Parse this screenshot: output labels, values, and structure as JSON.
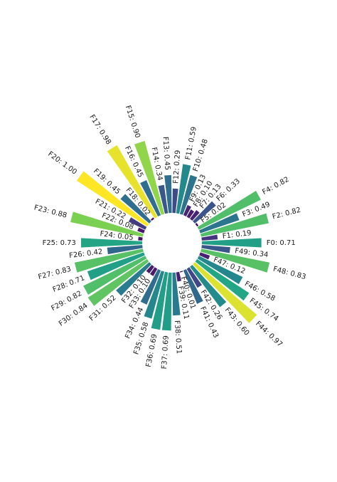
{
  "chart_data": {
    "type": "bar",
    "subtype": "radial",
    "title": "",
    "label_format": "{name}: {value}",
    "ylim": [
      0,
      1.0
    ],
    "grid": false,
    "legend": "none",
    "colormap": "viridis",
    "categories": [
      "F0",
      "F1",
      "F2",
      "F3",
      "F4",
      "F5",
      "F6",
      "F7",
      "F8",
      "F9",
      "F10",
      "F11",
      "F12",
      "F13",
      "F14",
      "F15",
      "F16",
      "F17",
      "F18",
      "F19",
      "F20",
      "F21",
      "F22",
      "F23",
      "F24",
      "F25",
      "F26",
      "F27",
      "F28",
      "F29",
      "F30",
      "F31",
      "F32",
      "F33",
      "F34",
      "F35",
      "F36",
      "F37",
      "F38",
      "F39",
      "F40",
      "F41",
      "F42",
      "F43",
      "F44",
      "F45",
      "F46",
      "F47",
      "F48",
      "F49"
    ],
    "values": [
      0.71,
      0.19,
      0.82,
      0.49,
      0.82,
      0.02,
      0.33,
      0.13,
      0.1,
      0.13,
      0.48,
      0.59,
      0.29,
      0.45,
      0.34,
      0.9,
      0.45,
      0.98,
      0.02,
      0.45,
      1.0,
      0.22,
      0.08,
      0.88,
      0.05,
      0.73,
      0.42,
      0.83,
      0.71,
      0.82,
      0.84,
      0.52,
      0.1,
      0.1,
      0.44,
      0.58,
      0.69,
      0.69,
      0.51,
      0.11,
      0.01,
      0.43,
      0.26,
      0.6,
      0.97,
      0.74,
      0.58,
      0.12,
      0.83,
      0.34
    ],
    "value_labels": [
      "0.71",
      "0.19",
      "0.82",
      "0.49",
      "0.82",
      "0.02",
      "0.33",
      "0.13",
      "0.10",
      "0.13",
      "0.48",
      "0.59",
      "0.29",
      "0.45",
      "0.34",
      "0.90",
      "0.45",
      "0.98",
      "0.02",
      "0.45",
      "1.00",
      "0.22",
      "0.08",
      "0.88",
      "0.05",
      "0.73",
      "0.42",
      "0.83",
      "0.71",
      "0.82",
      "0.84",
      "0.52",
      "0.10",
      "0.10",
      "0.44",
      "0.58",
      "0.69",
      "0.69",
      "0.51",
      "0.11",
      "0.01",
      "0.43",
      "0.26",
      "0.60",
      "0.97",
      "0.74",
      "0.58",
      "0.12",
      "0.83",
      "0.34"
    ]
  }
}
